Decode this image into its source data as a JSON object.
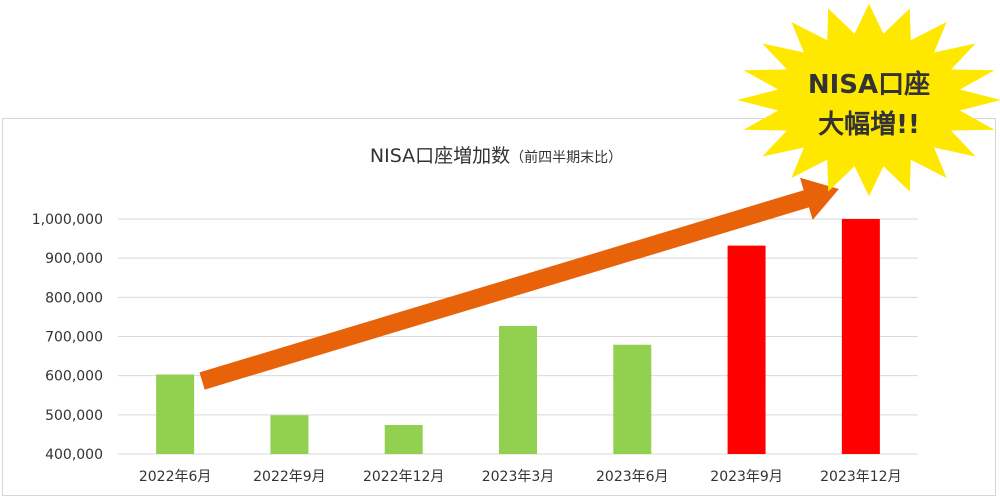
{
  "chart_data": {
    "type": "bar",
    "title": "NISA口座増加数",
    "subtitle": "（前四半期末比）",
    "categories": [
      "2022年6月",
      "2022年9月",
      "2022年12月",
      "2023年3月",
      "2023年6月",
      "2023年9月",
      "2023年12月"
    ],
    "values": [
      603000,
      499000,
      474000,
      727000,
      679000,
      932000,
      1000000
    ],
    "bar_colors": [
      "#92d050",
      "#92d050",
      "#92d050",
      "#92d050",
      "#92d050",
      "#ff0000",
      "#ff0000"
    ],
    "y_ticks": [
      "1,000,000",
      "900,000",
      "800,000",
      "700,000",
      "600,000",
      "500,000",
      "400,000"
    ],
    "ylim": [
      400000,
      1000000
    ],
    "grid": true,
    "legend": "none",
    "trend_arrow": {
      "from_category": "2022年6月",
      "to_category": "2023年12月",
      "color": "#e8620a"
    }
  },
  "callout": {
    "line1": "NISA口座",
    "line2": "大幅増!!",
    "fill_color": "#ffe800"
  }
}
